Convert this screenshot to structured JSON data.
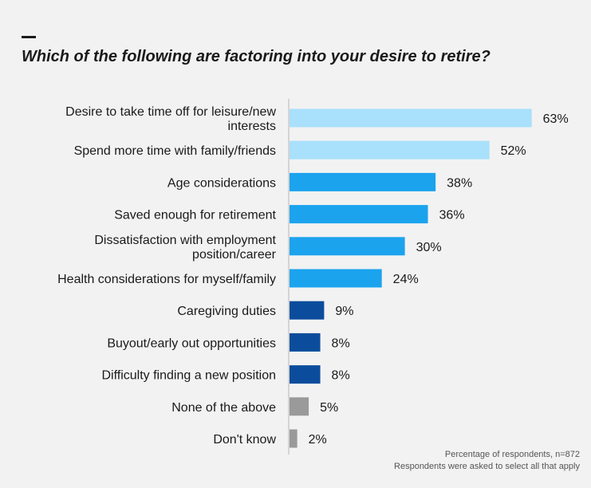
{
  "header": {
    "title": "Which of the following are factoring into your desire to retire?"
  },
  "footnote": {
    "line1": "Percentage of respondents, n=872",
    "line2": "Respondents were asked to select all that apply"
  },
  "chart_data": {
    "type": "bar",
    "orientation": "horizontal",
    "title": "Which of the following are factoring into your desire to retire?",
    "xlabel": "",
    "ylabel": "",
    "value_suffix": "%",
    "grid": false,
    "categories": [
      [
        "Desire to take time off for leisure/new",
        "interests"
      ],
      [
        "Spend more time with family/friends"
      ],
      [
        "Age considerations"
      ],
      [
        "Saved enough for retirement"
      ],
      [
        "Dissatisfaction with employment",
        "position/career"
      ],
      [
        "Health considerations for myself/family"
      ],
      [
        "Caregiving duties"
      ],
      [
        "Buyout/early out opportunities"
      ],
      [
        "Difficulty finding a new position"
      ],
      [
        "None of the above"
      ],
      [
        "Don't know"
      ]
    ],
    "values": [
      63,
      52,
      38,
      36,
      30,
      24,
      9,
      8,
      8,
      5,
      2
    ],
    "colors": [
      "#a9e0fb",
      "#a9e0fb",
      "#1ba3ee",
      "#1ba3ee",
      "#1ba3ee",
      "#1ba3ee",
      "#0b4d9c",
      "#0b4d9c",
      "#0b4d9c",
      "#9a9a9a",
      "#9a9a9a"
    ]
  }
}
